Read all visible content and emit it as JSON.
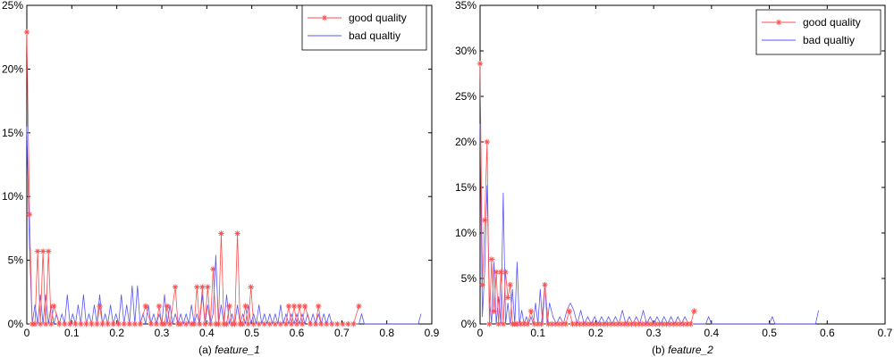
{
  "colors": {
    "good": "#ff4d4d",
    "bad": "#5555ff",
    "axis": "#000000"
  },
  "chart_data": [
    {
      "type": "line",
      "caption_prefix": "(a) ",
      "caption_italic": "feature_1",
      "xlim": [
        0,
        0.9
      ],
      "ylim": [
        0,
        25
      ],
      "xticks": [
        "0",
        "0.1",
        "0.2",
        "0.3",
        "0.4",
        "0.5",
        "0.6",
        "0.7",
        "0.8",
        "0.9"
      ],
      "yticks": [
        "0%",
        "5%",
        "10%",
        "15%",
        "20%",
        "25%"
      ],
      "legend": "top-right",
      "grid": false,
      "series": [
        {
          "name": "good quality",
          "color_key": "good",
          "marker": "star",
          "x": [
            0,
            0.006,
            0.012,
            0.018,
            0.024,
            0.03,
            0.036,
            0.042,
            0.048,
            0.054,
            0.06,
            0.072,
            0.084,
            0.096,
            0.108,
            0.12,
            0.132,
            0.144,
            0.156,
            0.162,
            0.168,
            0.18,
            0.192,
            0.204,
            0.216,
            0.228,
            0.24,
            0.252,
            0.264,
            0.276,
            0.288,
            0.294,
            0.3,
            0.306,
            0.312,
            0.318,
            0.33,
            0.336,
            0.342,
            0.354,
            0.366,
            0.372,
            0.378,
            0.384,
            0.39,
            0.396,
            0.402,
            0.408,
            0.414,
            0.42,
            0.426,
            0.432,
            0.438,
            0.444,
            0.45,
            0.456,
            0.462,
            0.468,
            0.474,
            0.48,
            0.486,
            0.492,
            0.498,
            0.504,
            0.516,
            0.528,
            0.54,
            0.552,
            0.564,
            0.576,
            0.582,
            0.588,
            0.594,
            0.6,
            0.606,
            0.612,
            0.618,
            0.63,
            0.642,
            0.648,
            0.654,
            0.666,
            0.678,
            0.69,
            0.702,
            0.714,
            0.726,
            0.738
          ],
          "y": [
            22.9,
            8.6,
            0,
            0,
            5.7,
            0,
            5.7,
            0,
            5.7,
            0,
            1.4,
            0,
            0,
            0,
            0,
            0,
            0,
            0,
            0,
            1.4,
            0,
            0,
            0,
            0,
            0,
            0,
            0,
            0,
            1.4,
            0,
            0,
            1.4,
            0,
            0,
            1.4,
            0,
            2.9,
            0,
            0,
            0,
            0,
            0,
            2.9,
            0,
            2.9,
            0,
            2.9,
            0,
            4.3,
            0,
            0,
            7.1,
            0,
            0,
            1.4,
            0,
            0,
            7.1,
            0,
            0,
            1.4,
            0,
            2.9,
            0,
            0,
            0,
            0,
            0,
            0,
            0,
            1.4,
            0,
            1.4,
            0,
            1.4,
            0,
            1.4,
            0,
            0,
            1.4,
            0,
            0,
            0,
            0,
            0,
            0,
            0,
            1.4
          ]
        },
        {
          "name": "bad qualtiy",
          "color_key": "bad",
          "marker": "none",
          "x": [
            0,
            0.006,
            0.012,
            0.018,
            0.024,
            0.03,
            0.036,
            0.042,
            0.048,
            0.054,
            0.06,
            0.066,
            0.072,
            0.078,
            0.084,
            0.09,
            0.096,
            0.102,
            0.108,
            0.114,
            0.12,
            0.126,
            0.132,
            0.138,
            0.144,
            0.15,
            0.156,
            0.162,
            0.168,
            0.174,
            0.18,
            0.186,
            0.192,
            0.198,
            0.204,
            0.21,
            0.216,
            0.222,
            0.228,
            0.234,
            0.24,
            0.246,
            0.252,
            0.258,
            0.264,
            0.27,
            0.276,
            0.282,
            0.288,
            0.294,
            0.3,
            0.306,
            0.312,
            0.318,
            0.324,
            0.33,
            0.336,
            0.342,
            0.348,
            0.354,
            0.36,
            0.366,
            0.372,
            0.378,
            0.384,
            0.39,
            0.396,
            0.402,
            0.408,
            0.414,
            0.42,
            0.426,
            0.432,
            0.438,
            0.444,
            0.45,
            0.456,
            0.462,
            0.468,
            0.474,
            0.48,
            0.486,
            0.492,
            0.498,
            0.504,
            0.51,
            0.516,
            0.522,
            0.528,
            0.534,
            0.54,
            0.546,
            0.552,
            0.558,
            0.564,
            0.57,
            0.576,
            0.582,
            0.588,
            0.594,
            0.6,
            0.606,
            0.612,
            0.618,
            0.624,
            0.63,
            0.636,
            0.642,
            0.648,
            0.654,
            0.66,
            0.666,
            0.672,
            0.678,
            0.69,
            0.702,
            0.714,
            0.726,
            0.738,
            0.744,
            0.75,
            0.76,
            0.87,
            0.876
          ],
          "y": [
            15.5,
            6.1,
            0,
            1.5,
            0,
            2.3,
            0,
            2.3,
            0,
            1.5,
            0,
            0.8,
            0,
            0.8,
            0,
            2.3,
            0,
            0.8,
            0,
            1.5,
            0,
            2.3,
            0,
            0.8,
            0,
            1.5,
            0,
            2.3,
            0,
            0.8,
            0,
            1.5,
            0,
            0.8,
            0,
            2.3,
            0,
            1.5,
            0,
            3.0,
            0,
            3.0,
            0,
            0.8,
            0,
            1.5,
            0,
            0.8,
            0,
            0.8,
            0,
            2.3,
            0,
            1.5,
            0,
            0.8,
            0,
            0.8,
            0,
            0.8,
            0,
            1.5,
            0,
            0.8,
            0,
            2.3,
            0,
            1.5,
            0,
            0.8,
            5.4,
            0,
            1.5,
            0,
            2.3,
            0,
            0.8,
            0,
            1.5,
            0,
            0.8,
            0,
            1.5,
            0,
            0.8,
            0,
            1.5,
            0,
            0.8,
            0,
            0.8,
            0,
            0.8,
            0,
            1.5,
            0,
            0.8,
            0,
            0.8,
            0,
            0.8,
            0,
            0.8,
            0,
            0.8,
            0,
            0.8,
            0,
            0.8,
            0,
            0.8,
            0,
            0.8,
            0,
            0,
            0,
            0,
            0,
            0,
            0.8,
            0,
            0,
            0,
            0.8
          ]
        }
      ]
    },
    {
      "type": "line",
      "caption_prefix": "(b) ",
      "caption_italic": "feature_2",
      "xlim": [
        0,
        0.7
      ],
      "ylim": [
        0,
        35
      ],
      "xticks": [
        "0",
        "0.1",
        "0.2",
        "0.3",
        "0.4",
        "0.5",
        "0.6",
        "0.7"
      ],
      "yticks": [
        "0%",
        "5%",
        "10%",
        "15%",
        "20%",
        "25%",
        "30%",
        "35%"
      ],
      "legend": "top-right",
      "grid": false,
      "series": [
        {
          "name": "good quality",
          "color_key": "good",
          "marker": "star",
          "x": [
            0,
            0.004,
            0.008,
            0.012,
            0.016,
            0.02,
            0.024,
            0.028,
            0.032,
            0.036,
            0.04,
            0.044,
            0.048,
            0.052,
            0.056,
            0.06,
            0.064,
            0.07,
            0.076,
            0.082,
            0.088,
            0.094,
            0.1,
            0.106,
            0.112,
            0.118,
            0.124,
            0.13,
            0.136,
            0.142,
            0.148,
            0.154,
            0.16,
            0.166,
            0.172,
            0.178,
            0.184,
            0.19,
            0.196,
            0.202,
            0.208,
            0.214,
            0.22,
            0.226,
            0.232,
            0.238,
            0.244,
            0.25,
            0.256,
            0.262,
            0.268,
            0.274,
            0.28,
            0.286,
            0.292,
            0.298,
            0.304,
            0.31,
            0.316,
            0.322,
            0.328,
            0.334,
            0.34,
            0.346,
            0.352,
            0.358,
            0.364,
            0.37
          ],
          "y": [
            28.6,
            4.3,
            11.4,
            20.0,
            0,
            7.1,
            1.4,
            5.7,
            0,
            5.7,
            0,
            5.7,
            2.9,
            4.3,
            0,
            0,
            0,
            0,
            0,
            0,
            1.4,
            0,
            0,
            0,
            4.3,
            0,
            0,
            0,
            0,
            0,
            0,
            1.4,
            0,
            0,
            0,
            0,
            0,
            0,
            0,
            0,
            0,
            0,
            0,
            0,
            0,
            0,
            0,
            0,
            0,
            0,
            0,
            0,
            0,
            0,
            0,
            0,
            0,
            0,
            0,
            0,
            0,
            0,
            0,
            0,
            0,
            0,
            0,
            1.4
          ]
        },
        {
          "name": "bad qualtiy",
          "color_key": "bad",
          "marker": "none",
          "x": [
            0,
            0.004,
            0.008,
            0.012,
            0.016,
            0.02,
            0.024,
            0.028,
            0.032,
            0.036,
            0.04,
            0.044,
            0.048,
            0.052,
            0.056,
            0.06,
            0.064,
            0.068,
            0.072,
            0.076,
            0.08,
            0.084,
            0.088,
            0.092,
            0.096,
            0.1,
            0.104,
            0.108,
            0.112,
            0.116,
            0.12,
            0.126,
            0.132,
            0.138,
            0.144,
            0.15,
            0.156,
            0.162,
            0.168,
            0.174,
            0.18,
            0.186,
            0.192,
            0.198,
            0.204,
            0.21,
            0.216,
            0.222,
            0.228,
            0.234,
            0.24,
            0.246,
            0.252,
            0.258,
            0.264,
            0.27,
            0.276,
            0.282,
            0.288,
            0.294,
            0.3,
            0.306,
            0.312,
            0.318,
            0.324,
            0.33,
            0.336,
            0.342,
            0.348,
            0.354,
            0.36,
            0.39,
            0.395,
            0.4,
            0.5,
            0.505,
            0.51,
            0.58,
            0.585
          ],
          "y": [
            22.0,
            0.8,
            6.0,
            15.2,
            3.0,
            0,
            6.8,
            0,
            3.0,
            0,
            14.4,
            0,
            2.3,
            0,
            3.8,
            0,
            6.8,
            0,
            1.5,
            0,
            0.8,
            0,
            0.8,
            0,
            2.3,
            0,
            3.8,
            0,
            4.5,
            0,
            2.3,
            0.8,
            0,
            0.8,
            0,
            1.5,
            2.3,
            1.5,
            0,
            1.5,
            0,
            0.8,
            0,
            0.8,
            0,
            0.8,
            0,
            0.8,
            0,
            0.8,
            0,
            1.5,
            0,
            0.8,
            0,
            0.8,
            0,
            1.5,
            0,
            0.8,
            0,
            0.8,
            0,
            0.8,
            0,
            0.8,
            0,
            0.8,
            0,
            0.8,
            0,
            0,
            0.8,
            0,
            0,
            0.8,
            0,
            0,
            1.5
          ]
        }
      ]
    }
  ]
}
